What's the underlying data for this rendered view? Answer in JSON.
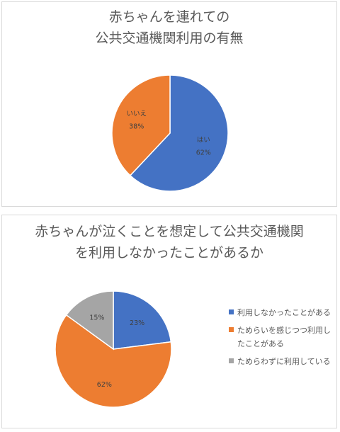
{
  "chart_data": [
    {
      "type": "pie",
      "title_lines": [
        "赤ちゃんを連れての",
        "公共交通機関利用の有無"
      ],
      "slices": [
        {
          "label": "はい",
          "value": 62,
          "value_label": "62%",
          "color": "#4472C4"
        },
        {
          "label": "いいえ",
          "value": 38,
          "value_label": "38%",
          "color": "#ED7D31"
        }
      ]
    },
    {
      "type": "pie",
      "title_lines": [
        "赤ちゃんが泣くことを想定して公共交通機関",
        "を利用しなかったことがあるか"
      ],
      "slices": [
        {
          "label": "利用しなかったことがある",
          "value": 23,
          "value_label": "23%",
          "color": "#4472C4"
        },
        {
          "label": "ためらいを感じつつ利用したことがある",
          "value": 62,
          "value_label": "62%",
          "color": "#ED7D31"
        },
        {
          "label": "ためらわずに利用している",
          "value": 15,
          "value_label": "15%",
          "color": "#A5A5A5"
        }
      ],
      "legend": {
        "position": "right",
        "items": [
          "利用しなかったことがある",
          "ためらいを感じつつ利用したことがある",
          "ためらわずに利用している"
        ]
      }
    }
  ]
}
